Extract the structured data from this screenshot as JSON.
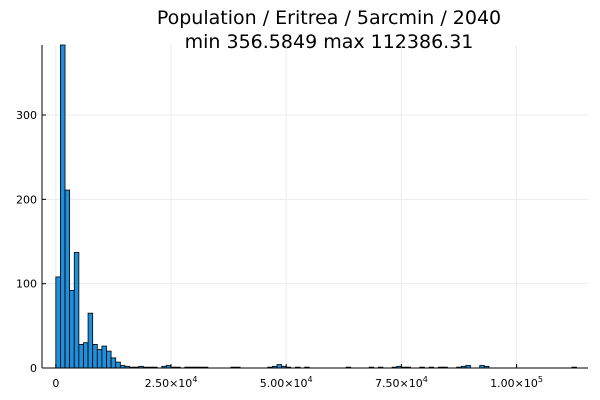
{
  "chart_data": {
    "type": "bar",
    "title": "Population / Eritrea / 5arcmin / 2040",
    "subtitle": "min 356.5849  max 112386.31",
    "xlabel": "",
    "ylabel": "",
    "bin_width": 1000,
    "bin_start": 0,
    "values": [
      108,
      383,
      211,
      92,
      137,
      28,
      30,
      65,
      28,
      22,
      26,
      20,
      12,
      7,
      3,
      2,
      1,
      1,
      2,
      1,
      1,
      1,
      0,
      2,
      3,
      1,
      1,
      0,
      1,
      1,
      1,
      1,
      1,
      0,
      0,
      0,
      0,
      0,
      1,
      1,
      0,
      0,
      0,
      0,
      0,
      0,
      1,
      2,
      4,
      2,
      1,
      0,
      1,
      0,
      1,
      0,
      0,
      0,
      0,
      0,
      0,
      0,
      0,
      1,
      0,
      0,
      0,
      0,
      1,
      0,
      1,
      0,
      0,
      1,
      2,
      1,
      1,
      0,
      0,
      1,
      0,
      1,
      0,
      1,
      1,
      0,
      0,
      1,
      2,
      3,
      0,
      0,
      3,
      2
    ],
    "extra_bins": [
      {
        "x": 112000,
        "value": 1
      }
    ],
    "xlim": [
      -3000,
      115500
    ],
    "ylim": [
      0,
      383
    ],
    "x_ticks": [
      0,
      25000,
      50000,
      75000,
      100000
    ],
    "x_tick_labels": [
      {
        "base": "0",
        "exp": ""
      },
      {
        "base": "2.50×10",
        "exp": "4"
      },
      {
        "base": "5.00×10",
        "exp": "4"
      },
      {
        "base": "7.50×10",
        "exp": "4"
      },
      {
        "base": "1.00×10",
        "exp": "5"
      }
    ],
    "y_ticks": [
      0,
      100,
      200,
      300
    ],
    "y_tick_labels": [
      "0",
      "100",
      "200",
      "300"
    ],
    "grid": true,
    "bar_color": "#1f8fdc",
    "bar_edge_color": "#000000"
  }
}
